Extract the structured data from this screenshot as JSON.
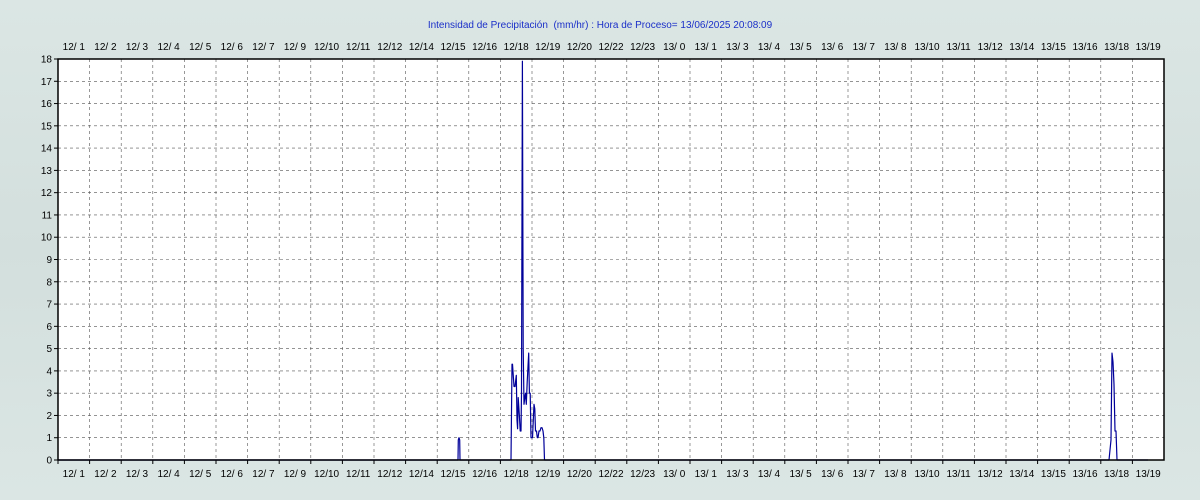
{
  "chart_data": {
    "type": "line",
    "title": "Intensidad de Precipitación  (mm/hr) : Hora de Proceso= 13/06/2025 20:08:09",
    "xlabel": "",
    "ylabel": "",
    "ylim": [
      0,
      18
    ],
    "y_ticks": [
      0,
      1,
      2,
      3,
      4,
      5,
      6,
      7,
      8,
      9,
      10,
      11,
      12,
      13,
      14,
      15,
      16,
      17,
      18
    ],
    "grid": true,
    "legend": "none",
    "x_tick_labels": [
      "12/ 1",
      "12/ 2",
      "12/ 3",
      "12/ 4",
      "12/ 5",
      "12/ 6",
      "12/ 7",
      "12/ 9",
      "12/10",
      "12/11",
      "12/12",
      "12/14",
      "12/15",
      "12/16",
      "12/18",
      "12/19",
      "12/20",
      "12/22",
      "12/23",
      "13/ 0",
      "13/ 1",
      "13/ 3",
      "13/ 4",
      "13/ 5",
      "13/ 6",
      "13/ 7",
      "13/ 8",
      "13/10",
      "13/11",
      "13/12",
      "13/14",
      "13/15",
      "13/16",
      "13/18",
      "13/19"
    ],
    "colors": {
      "line": "#000099",
      "title": "#1a2fc8",
      "grid": "#555555"
    },
    "series": [
      {
        "values": [
          [
            0,
            0
          ],
          [
            400,
            0
          ],
          [
            400.3,
            0.9
          ],
          [
            401,
            1.0
          ],
          [
            401.7,
            0.9
          ],
          [
            402,
            0
          ],
          [
            453,
            0
          ],
          [
            454,
            4.3
          ],
          [
            454.5,
            4.3
          ],
          [
            456,
            3.3
          ],
          [
            457,
            3.3
          ],
          [
            458.3,
            3.8
          ],
          [
            459,
            1.8
          ],
          [
            459.6,
            1.4
          ],
          [
            460.2,
            2.8
          ],
          [
            461.5,
            1.9
          ],
          [
            462.2,
            1.3
          ],
          [
            463,
            1.3
          ],
          [
            463.5,
            3.0
          ],
          [
            464.4,
            17.9
          ],
          [
            465.2,
            5.0
          ],
          [
            466,
            2.5
          ],
          [
            466.8,
            2.8
          ],
          [
            467.5,
            3.0
          ],
          [
            468.3,
            2.5
          ],
          [
            469.2,
            3.5
          ],
          [
            470,
            4.2
          ],
          [
            470.7,
            4.8
          ],
          [
            471.4,
            3.0
          ],
          [
            472.2,
            3.0
          ],
          [
            473,
            1.0
          ],
          [
            474.5,
            1.0
          ],
          [
            476,
            2.5
          ],
          [
            476.8,
            2.3
          ],
          [
            477.5,
            1.3
          ],
          [
            478.5,
            1.3
          ],
          [
            479.3,
            1.0
          ],
          [
            480,
            1.0
          ],
          [
            481,
            1.3
          ],
          [
            482,
            1.3
          ],
          [
            483,
            1.45
          ],
          [
            484,
            1.45
          ],
          [
            485,
            1.3
          ],
          [
            485.8,
            1.0
          ],
          [
            486.5,
            0
          ],
          [
            1051,
            0
          ],
          [
            1053,
            0.9
          ],
          [
            1054,
            4.8
          ],
          [
            1055,
            4.4
          ],
          [
            1056,
            3.4
          ],
          [
            1057,
            1.3
          ],
          [
            1058,
            1.3
          ],
          [
            1059,
            0
          ],
          [
            1090,
            0
          ]
        ]
      }
    ]
  }
}
